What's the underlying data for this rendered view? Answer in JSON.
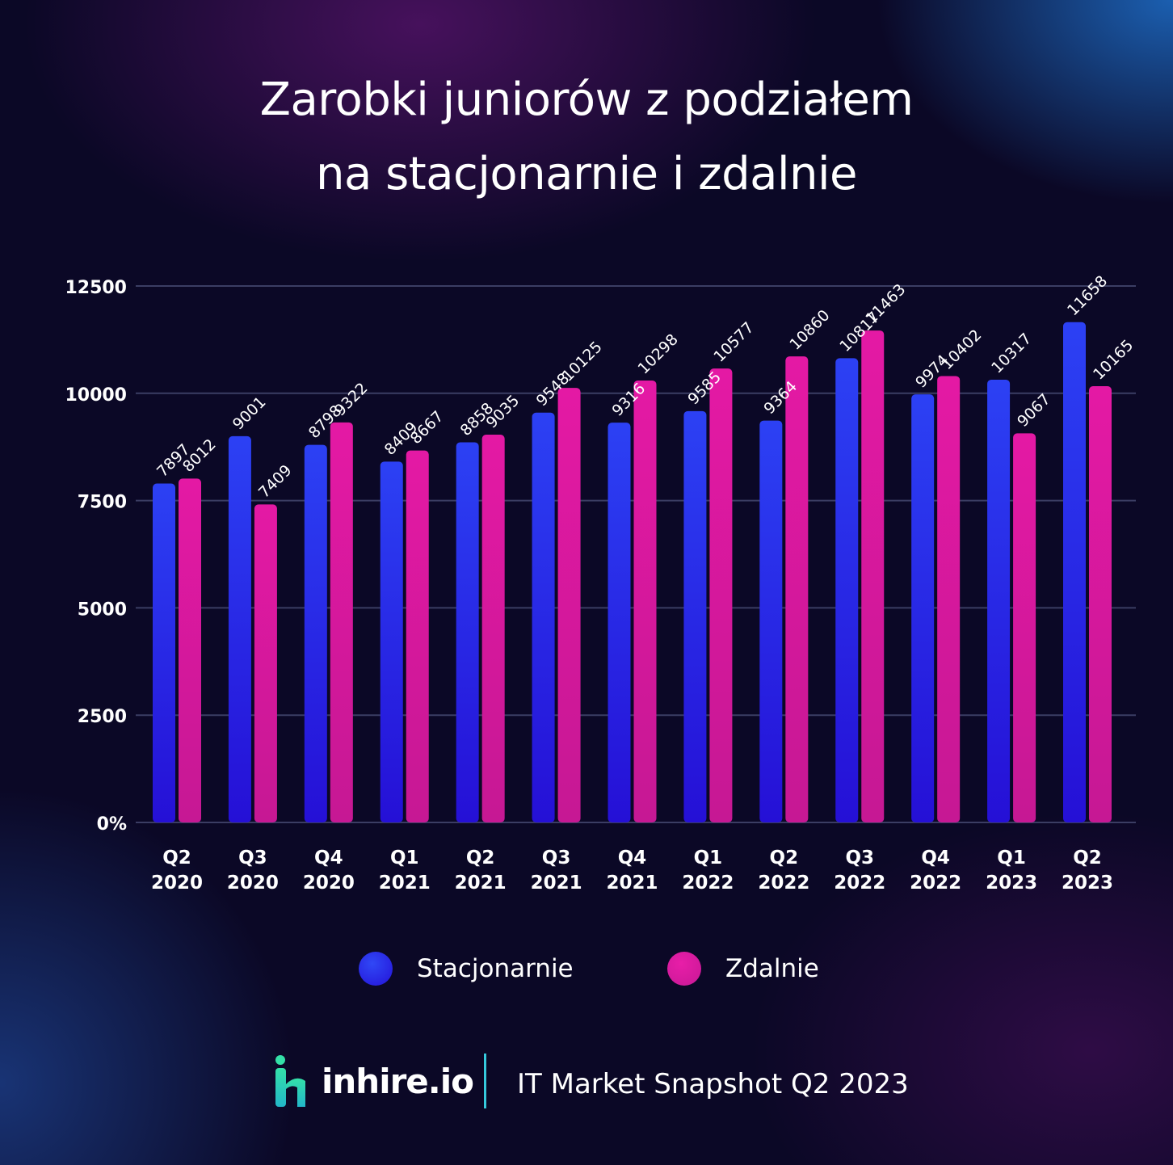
{
  "title_lines": [
    "Zarobki juniorów z podziałem",
    "na stacjonarnie i zdalnie"
  ],
  "colors": {
    "stacjonarnie": "#2b3cf2",
    "zdalnie": "#e0199e",
    "grid": "#3b3d63",
    "logo_accent": "#2fd3a6",
    "divider": "#36c9dd"
  },
  "chart_data": {
    "type": "bar",
    "title": "Zarobki juniorów z podziałem na stacjonarnie i zdalnie",
    "categories": [
      [
        "Q2",
        "2020"
      ],
      [
        "Q3",
        "2020"
      ],
      [
        "Q4",
        "2020"
      ],
      [
        "Q1",
        "2021"
      ],
      [
        "Q2",
        "2021"
      ],
      [
        "Q3",
        "2021"
      ],
      [
        "Q4",
        "2021"
      ],
      [
        "Q1",
        "2022"
      ],
      [
        "Q2",
        "2022"
      ],
      [
        "Q3",
        "2022"
      ],
      [
        "Q4",
        "2022"
      ],
      [
        "Q1",
        "2023"
      ],
      [
        "Q2",
        "2023"
      ]
    ],
    "series": [
      {
        "name": "Stacjonarnie",
        "values": [
          7897,
          9001,
          8798,
          8409,
          8858,
          9548,
          9316,
          9585,
          9364,
          10817,
          9974,
          10317,
          11658
        ]
      },
      {
        "name": "Zdalnie",
        "values": [
          8012,
          7409,
          9322,
          8667,
          9035,
          10125,
          10298,
          10577,
          10860,
          11463,
          10402,
          9067,
          10165
        ]
      }
    ],
    "y_ticks": [
      "0%",
      "2500",
      "5000",
      "7500",
      "10000",
      "12500"
    ],
    "ylim": [
      0,
      12500
    ],
    "grid": true,
    "legend_position": "bottom-center",
    "xlabel": "",
    "ylabel": ""
  },
  "legend": [
    {
      "label": "Stacjonarnie"
    },
    {
      "label": "Zdalnie"
    }
  ],
  "footer": {
    "logo_text": "inhire.io",
    "caption": "IT Market Snapshot Q2 2023"
  }
}
